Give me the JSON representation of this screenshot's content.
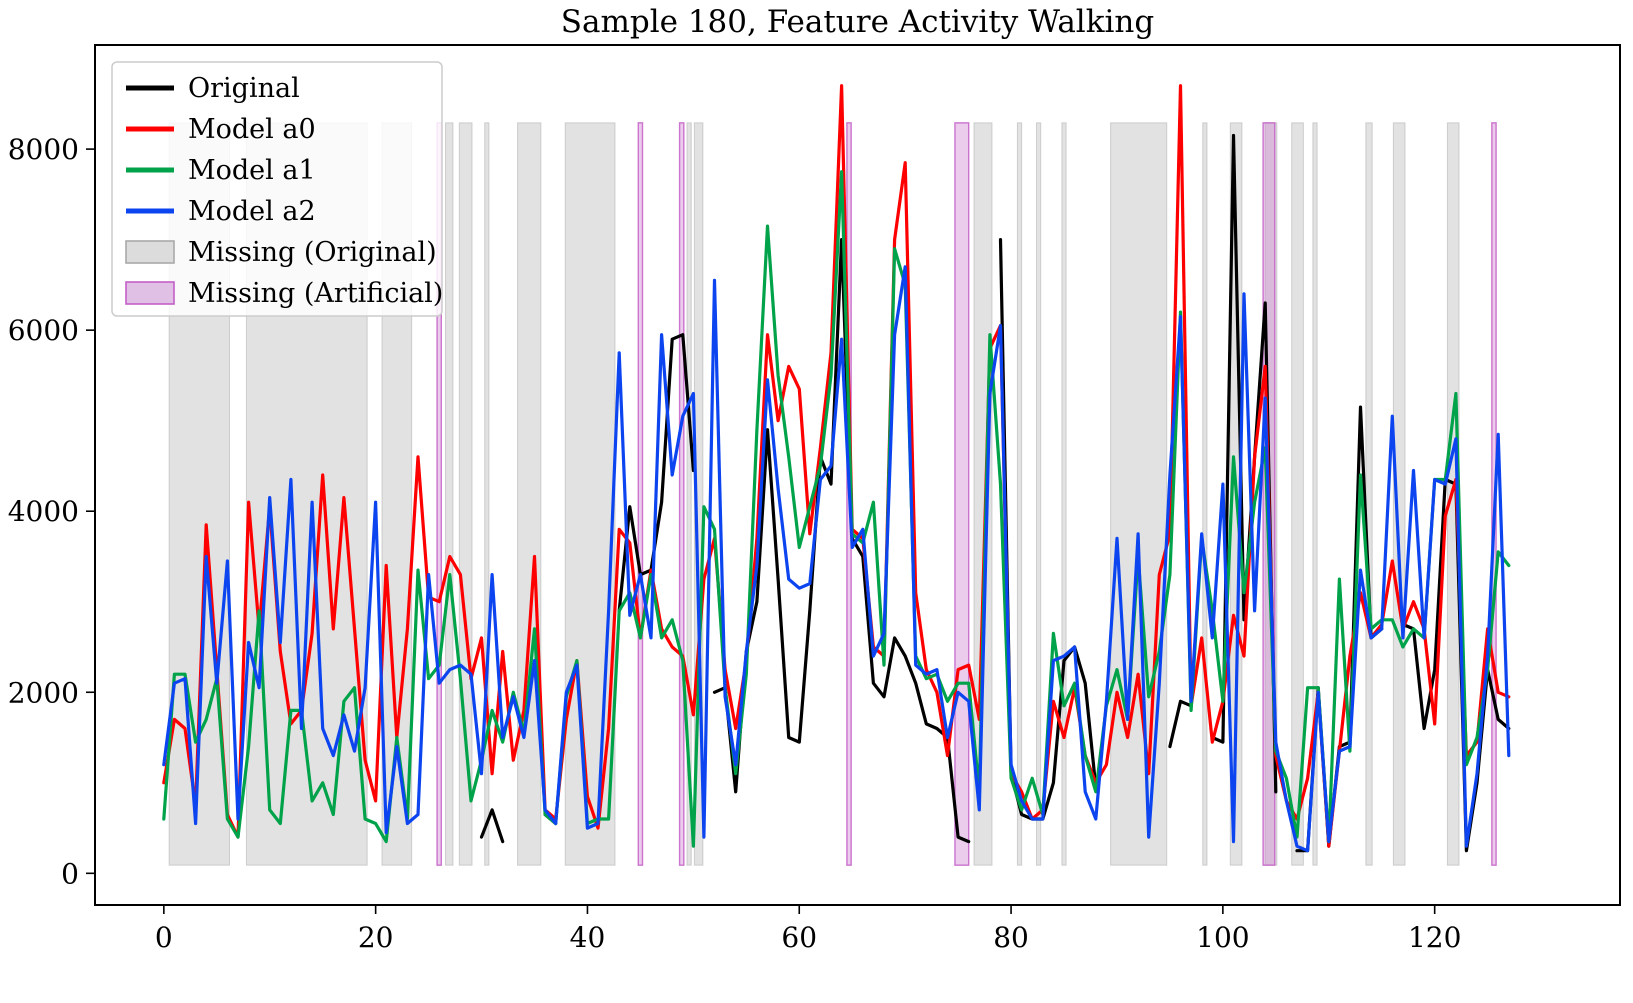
{
  "title": "Sample 180, Feature Activity Walking",
  "chart_data": {
    "type": "line",
    "title": "Sample 180, Feature Activity Walking",
    "xlabel": "",
    "ylabel": "",
    "grid": false,
    "legend_position": "upper left",
    "xlim": [
      -6.5,
      137.5
    ],
    "ylim": [
      -350,
      9150
    ],
    "xticks": [
      0,
      20,
      40,
      60,
      80,
      100,
      120
    ],
    "yticks": [
      0,
      2000,
      4000,
      6000,
      8000
    ],
    "band_y_extent": [
      90,
      8290
    ],
    "x": [
      0,
      1,
      2,
      3,
      4,
      5,
      6,
      7,
      8,
      9,
      10,
      11,
      12,
      13,
      14,
      15,
      16,
      17,
      18,
      19,
      20,
      21,
      22,
      23,
      24,
      25,
      26,
      27,
      28,
      29,
      30,
      31,
      32,
      33,
      34,
      35,
      36,
      37,
      38,
      39,
      40,
      41,
      42,
      43,
      44,
      45,
      46,
      47,
      48,
      49,
      50,
      51,
      52,
      53,
      54,
      55,
      56,
      57,
      58,
      59,
      60,
      61,
      62,
      63,
      64,
      65,
      66,
      67,
      68,
      69,
      70,
      71,
      72,
      73,
      74,
      75,
      76,
      77,
      78,
      79,
      80,
      81,
      82,
      83,
      84,
      85,
      86,
      87,
      88,
      89,
      90,
      91,
      92,
      93,
      94,
      95,
      96,
      97,
      98,
      99,
      100,
      101,
      102,
      103,
      104,
      105,
      106,
      107,
      108,
      109,
      110,
      111,
      112,
      113,
      114,
      115,
      116,
      117,
      118,
      119,
      120,
      121,
      122,
      123,
      124,
      125,
      126,
      127
    ],
    "series": [
      {
        "name": "Original",
        "color": "#000000",
        "values": [
          null,
          null,
          null,
          null,
          null,
          null,
          null,
          null,
          null,
          null,
          null,
          null,
          null,
          null,
          null,
          null,
          null,
          null,
          null,
          null,
          null,
          null,
          null,
          null,
          null,
          null,
          null,
          null,
          null,
          null,
          400,
          700,
          350,
          null,
          null,
          null,
          650,
          550,
          null,
          null,
          null,
          null,
          null,
          2900,
          4050,
          3300,
          3350,
          4100,
          5900,
          5950,
          4450,
          null,
          2000,
          2050,
          900,
          2450,
          3000,
          4900,
          3250,
          1500,
          1450,
          2900,
          4600,
          4300,
          7000,
          3700,
          3500,
          2100,
          1950,
          2600,
          2400,
          2100,
          1650,
          1600,
          1500,
          400,
          350,
          null,
          null,
          7000,
          1100,
          650,
          600,
          600,
          1000,
          2350,
          2500,
          2100,
          950,
          null,
          null,
          null,
          null,
          null,
          null,
          1400,
          1900,
          1850,
          null,
          1500,
          1450,
          8150,
          2800,
          4600,
          6300,
          900,
          null,
          250,
          250,
          2050,
          300,
          1400,
          1450,
          5150,
          2600,
          2700,
          null,
          2750,
          2700,
          1600,
          2250,
          4350,
          4300,
          250,
          1000,
          2250,
          1700,
          1600
        ]
      },
      {
        "name": "Model a0",
        "color": "#fe0000",
        "values": [
          1000,
          1700,
          1600,
          750,
          3850,
          2250,
          650,
          400,
          4100,
          2700,
          4050,
          2450,
          1650,
          1800,
          2650,
          4400,
          2700,
          4150,
          2700,
          1250,
          800,
          3400,
          1500,
          2700,
          4600,
          3050,
          3000,
          3500,
          3300,
          2150,
          2600,
          1100,
          2450,
          1250,
          1800,
          3500,
          700,
          600,
          1700,
          2350,
          850,
          500,
          1600,
          3800,
          3650,
          2600,
          3350,
          2700,
          2500,
          2400,
          1750,
          3250,
          3700,
          2250,
          1600,
          2350,
          3700,
          5950,
          5000,
          5600,
          5350,
          3750,
          4700,
          5750,
          8700,
          3800,
          3700,
          2500,
          2400,
          7000,
          7850,
          3100,
          2250,
          2000,
          1300,
          2250,
          2300,
          1700,
          5800,
          6050,
          1100,
          900,
          600,
          700,
          1900,
          1500,
          2050,
          1300,
          1000,
          1200,
          2000,
          1500,
          2200,
          1100,
          3300,
          3750,
          8700,
          1850,
          2600,
          1450,
          1900,
          2850,
          2400,
          4600,
          5600,
          1300,
          800,
          600,
          1050,
          2000,
          300,
          1350,
          2400,
          3100,
          2600,
          2750,
          3450,
          2700,
          3000,
          2700,
          1650,
          3950,
          4350,
          1300,
          1450,
          2700,
          2000,
          1950
        ]
      },
      {
        "name": "Model a1",
        "color": "#00a24a",
        "values": [
          600,
          2200,
          2200,
          1450,
          1700,
          2150,
          600,
          400,
          1400,
          2900,
          700,
          550,
          1800,
          1800,
          800,
          1000,
          650,
          1900,
          2050,
          600,
          550,
          350,
          1500,
          600,
          3350,
          2150,
          2300,
          3300,
          2150,
          800,
          1250,
          1800,
          1450,
          2000,
          1550,
          2700,
          650,
          550,
          1950,
          2350,
          550,
          600,
          600,
          2900,
          3100,
          2600,
          3300,
          2600,
          2800,
          2350,
          300,
          4050,
          3800,
          2050,
          1100,
          2200,
          4900,
          7150,
          5500,
          4600,
          3600,
          4050,
          4500,
          5500,
          7750,
          3750,
          3650,
          4100,
          2300,
          6900,
          6500,
          2400,
          2150,
          2200,
          1900,
          2100,
          2100,
          900,
          5950,
          4300,
          1050,
          700,
          1050,
          650,
          2650,
          1850,
          2100,
          1300,
          900,
          1850,
          2250,
          1700,
          3500,
          1950,
          2450,
          3300,
          6200,
          1800,
          3700,
          2900,
          1900,
          4600,
          3100,
          4100,
          4700,
          1350,
          1050,
          400,
          2050,
          2050,
          350,
          3250,
          1350,
          4400,
          2700,
          2800,
          2800,
          2500,
          2700,
          2600,
          4350,
          4350,
          5300,
          1200,
          1500,
          2250,
          3550,
          3400
        ]
      },
      {
        "name": "Model a2",
        "color": "#0c45f0",
        "values": [
          1200,
          2100,
          2150,
          550,
          3500,
          2100,
          3450,
          600,
          2550,
          2050,
          4150,
          2550,
          4350,
          1600,
          4100,
          1600,
          1300,
          1750,
          1350,
          2050,
          4100,
          450,
          1400,
          550,
          650,
          3300,
          2100,
          2250,
          2300,
          2200,
          1100,
          3300,
          1500,
          1950,
          1500,
          2350,
          700,
          550,
          2000,
          2300,
          500,
          550,
          2900,
          5750,
          2850,
          3300,
          2600,
          5950,
          4400,
          5050,
          5300,
          400,
          6550,
          1950,
          1200,
          2450,
          3400,
          5450,
          4250,
          3250,
          3150,
          3200,
          4350,
          4500,
          5900,
          3600,
          3800,
          2400,
          2650,
          5950,
          6700,
          2300,
          2200,
          2250,
          1500,
          2000,
          1900,
          700,
          5300,
          6050,
          1200,
          800,
          600,
          600,
          2350,
          2400,
          2500,
          900,
          600,
          1900,
          3700,
          1700,
          3750,
          400,
          2100,
          4400,
          6150,
          1900,
          3750,
          2600,
          4300,
          350,
          6400,
          2900,
          5250,
          1450,
          800,
          300,
          250,
          2000,
          350,
          1350,
          1400,
          3350,
          2600,
          2700,
          5050,
          2600,
          4450,
          2600,
          4350,
          4300,
          4800,
          300,
          1100,
          2400,
          4850,
          1300
        ]
      }
    ],
    "missing_original": {
      "label": "Missing (Original)",
      "fill": "#cfcfcf",
      "edge": "#a9a9a9",
      "spans": [
        [
          0.5,
          6.2
        ],
        [
          7.8,
          19.2
        ],
        [
          20.6,
          23.4
        ],
        [
          26.6,
          27.3
        ],
        [
          27.9,
          29.1
        ],
        [
          30.3,
          30.7
        ],
        [
          33.4,
          35.6
        ],
        [
          37.9,
          42.6
        ],
        [
          49.4,
          49.8
        ],
        [
          50.1,
          50.9
        ],
        [
          76.5,
          78.2
        ],
        [
          80.6,
          81.0
        ],
        [
          82.4,
          82.8
        ],
        [
          84.8,
          85.2
        ],
        [
          89.4,
          94.7
        ],
        [
          98.1,
          98.5
        ],
        [
          100.7,
          101.8
        ],
        [
          104.0,
          105.1
        ],
        [
          106.5,
          107.6
        ],
        [
          108.5,
          108.9
        ],
        [
          113.5,
          114.1
        ],
        [
          116.1,
          117.2
        ],
        [
          121.2,
          122.3
        ]
      ]
    },
    "missing_artificial": {
      "label": "Missing (Artificial)",
      "fill": "#cc7fd0",
      "edge": "#c45fc8",
      "spans": [
        [
          25.8,
          26.2
        ],
        [
          44.8,
          45.2
        ],
        [
          48.7,
          49.1
        ],
        [
          64.5,
          64.9
        ],
        [
          74.7,
          76.0
        ],
        [
          103.8,
          104.9
        ],
        [
          125.4,
          125.8
        ]
      ]
    },
    "legend": [
      {
        "label": "Original",
        "swatch": "line",
        "color": "#000000"
      },
      {
        "label": "Model a0",
        "swatch": "line",
        "color": "#fe0000"
      },
      {
        "label": "Model a1",
        "swatch": "line",
        "color": "#00a24a"
      },
      {
        "label": "Model a2",
        "swatch": "line",
        "color": "#0c45f0"
      },
      {
        "label": "Missing (Original)",
        "swatch": "patch",
        "fill": "#dcdcdc",
        "edge": "#a9a9a9"
      },
      {
        "label": "Missing (Artificial)",
        "swatch": "patch",
        "fill": "#e0c0e4",
        "edge": "#c45fc8"
      }
    ]
  }
}
